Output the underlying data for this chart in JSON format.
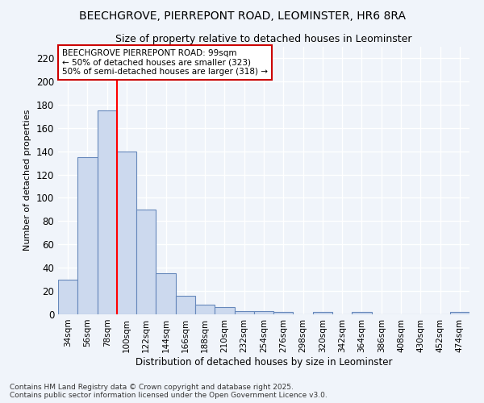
{
  "title_line1": "BEECHGROVE, PIERREPONT ROAD, LEOMINSTER, HR6 8RA",
  "title_line2": "Size of property relative to detached houses in Leominster",
  "xlabel": "Distribution of detached houses by size in Leominster",
  "ylabel": "Number of detached properties",
  "bar_labels": [
    "34sqm",
    "56sqm",
    "78sqm",
    "100sqm",
    "122sqm",
    "144sqm",
    "166sqm",
    "188sqm",
    "210sqm",
    "232sqm",
    "254sqm",
    "276sqm",
    "298sqm",
    "320sqm",
    "342sqm",
    "364sqm",
    "386sqm",
    "408sqm",
    "430sqm",
    "452sqm",
    "474sqm"
  ],
  "bar_values": [
    30,
    135,
    175,
    140,
    90,
    35,
    16,
    8,
    6,
    3,
    3,
    2,
    0,
    2,
    0,
    2,
    0,
    0,
    0,
    0,
    2
  ],
  "bar_color": "#ccd9ee",
  "bar_edge_color": "#6688bb",
  "red_line_index": 3,
  "annotation_text": "BEECHGROVE PIERREPONT ROAD: 99sqm\n← 50% of detached houses are smaller (323)\n50% of semi-detached houses are larger (318) →",
  "annotation_box_color": "#ffffff",
  "annotation_box_edge": "#cc0000",
  "ylim": [
    0,
    230
  ],
  "yticks": [
    0,
    20,
    40,
    60,
    80,
    100,
    120,
    140,
    160,
    180,
    200,
    220
  ],
  "background_color": "#f0f4fa",
  "grid_color": "#d0d8e8",
  "footer_line1": "Contains HM Land Registry data © Crown copyright and database right 2025.",
  "footer_line2": "Contains public sector information licensed under the Open Government Licence v3.0."
}
